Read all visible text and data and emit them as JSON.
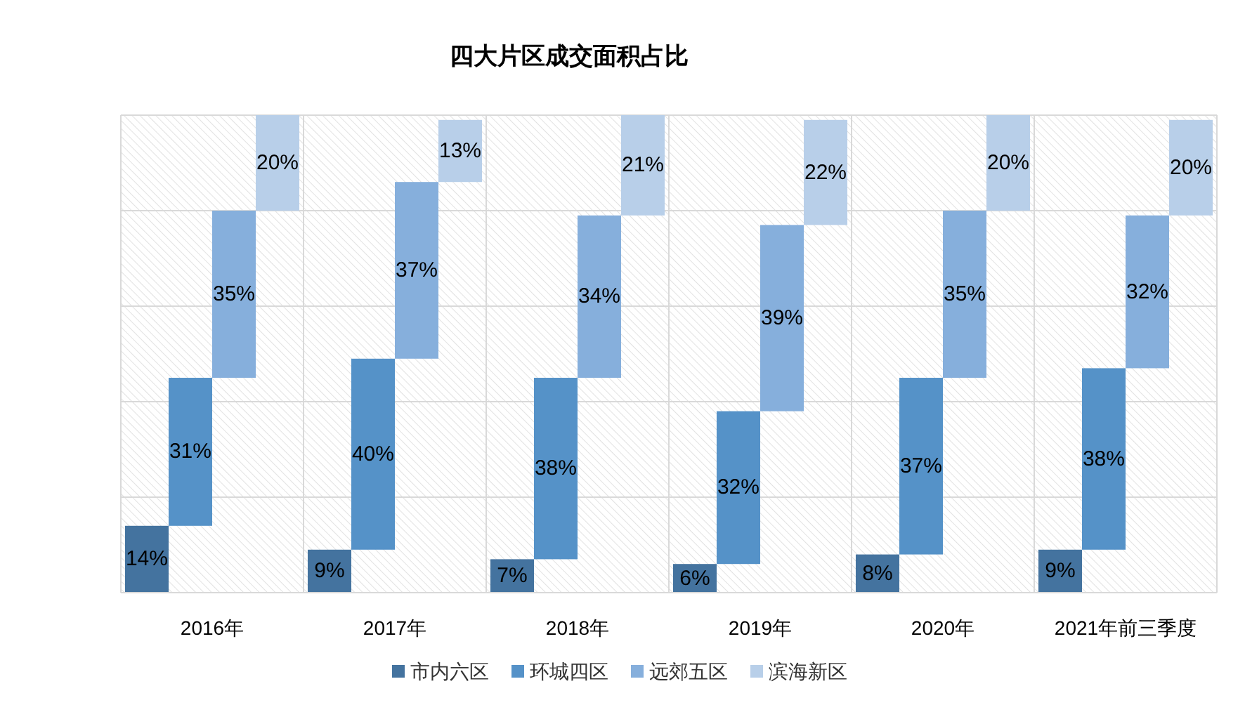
{
  "chart_data": {
    "type": "bar",
    "title": "四大片区成交面积占比",
    "categories": [
      "2016年",
      "2017年",
      "2018年",
      "2019年",
      "2020年",
      "2021年前三季度"
    ],
    "stacked": true,
    "series": [
      {
        "name": "市内六区",
        "color": "#44739f",
        "values": [
          14,
          9,
          7,
          6,
          8,
          9
        ],
        "value_labels": [
          "14%",
          "9%",
          "7%",
          "6%",
          "8%",
          "9%"
        ]
      },
      {
        "name": "环城四区",
        "color": "#5592c8",
        "values": [
          31,
          40,
          38,
          32,
          37,
          38
        ],
        "value_labels": [
          "31%",
          "40%",
          "38%",
          "32%",
          "37%",
          "38%"
        ]
      },
      {
        "name": "远郊五区",
        "color": "#86afdc",
        "values": [
          35,
          37,
          34,
          39,
          35,
          32
        ],
        "value_labels": [
          "35%",
          "37%",
          "34%",
          "39%",
          "35%",
          "32%"
        ]
      },
      {
        "name": "滨海新区",
        "color": "#b8cfe9",
        "values": [
          20,
          13,
          21,
          22,
          20,
          20
        ],
        "value_labels": [
          "20%",
          "13%",
          "21%",
          "22%",
          "20%",
          "20%"
        ]
      }
    ],
    "ylim": [
      0,
      100
    ],
    "yticks": [
      {
        "value": 0,
        "label": null
      },
      {
        "value": 20,
        "label": null
      },
      {
        "value": 40,
        "label": null
      },
      {
        "value": 60,
        "label": null
      },
      {
        "value": 80,
        "label": null
      },
      {
        "value": 100,
        "label": null
      }
    ],
    "tick_labels": "x",
    "grid": true,
    "legend": "bottom"
  }
}
